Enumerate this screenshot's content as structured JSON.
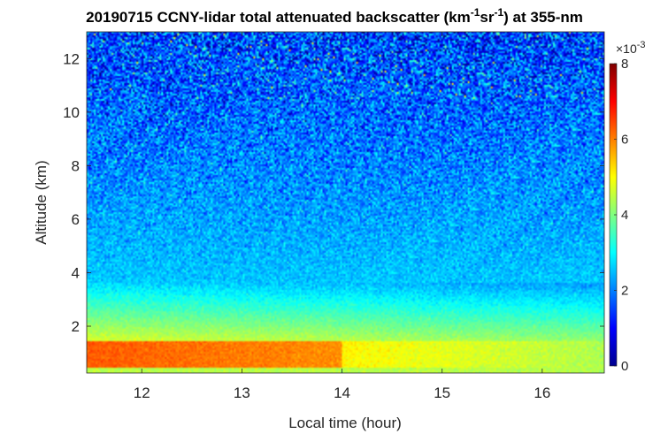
{
  "chart_data": {
    "type": "heatmap",
    "title_parts": [
      "20190715 CCNY-lidar total attenuated backscatter (km",
      "-1",
      "sr",
      "-1",
      ") at 355-nm"
    ],
    "xlabel": "Local time (hour)",
    "ylabel": "Altitude (km)",
    "xlim": [
      11.45,
      16.62
    ],
    "ylim": [
      0.25,
      13.0
    ],
    "x_ticks": [
      12,
      13,
      14,
      15,
      16
    ],
    "y_ticks": [
      2,
      4,
      6,
      8,
      10,
      12
    ],
    "colorbar": {
      "colormap": "jet",
      "clim": [
        0,
        0.008
      ],
      "tick_labels": [
        "0",
        "2",
        "4",
        "6",
        "8"
      ],
      "tick_values": [
        0,
        2,
        4,
        6,
        8
      ],
      "exponent_base": "×10",
      "exponent_power": "-3"
    },
    "layers": [
      {
        "description_time": [
          11.45,
          14.0
        ],
        "altitude_km": [
          0.4,
          1.4
        ],
        "value": 0.0065
      },
      {
        "description_time": [
          14.0,
          16.62
        ],
        "altitude_km": [
          0.4,
          1.4
        ],
        "value": 0.0045
      },
      {
        "description_time": [
          11.45,
          16.62
        ],
        "altitude_km": [
          1.4,
          3.5
        ],
        "value": 0.0035
      },
      {
        "description_time": [
          11.45,
          16.62
        ],
        "altitude_km": [
          3.5,
          13.0
        ],
        "value": 0.0012
      }
    ]
  }
}
